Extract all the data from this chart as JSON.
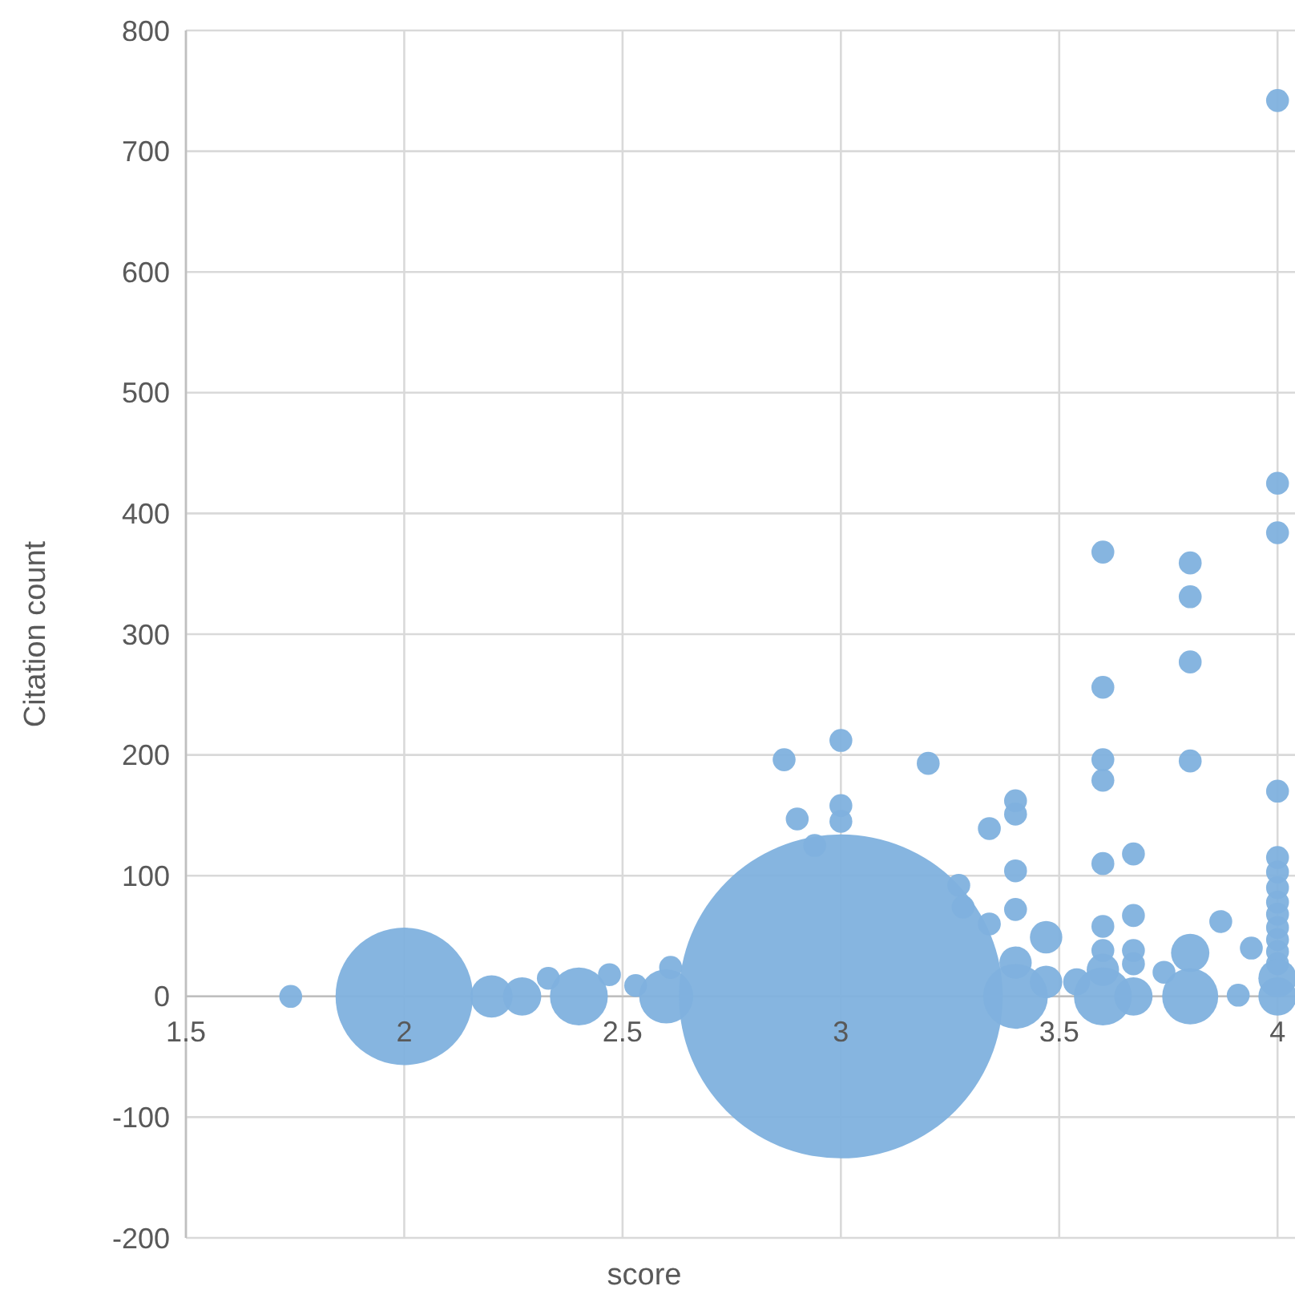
{
  "chart_data": {
    "type": "bubble",
    "xlabel": "score",
    "ylabel": "Citation count",
    "xlim": [
      1.5,
      4.04
    ],
    "xticks": [
      1.5,
      2,
      2.5,
      3,
      3.5,
      4
    ],
    "ylim": [
      -200,
      800
    ],
    "yticks": [
      -200,
      -100,
      0,
      100,
      200,
      300,
      400,
      500,
      600,
      700,
      800
    ],
    "grid": true,
    "series": [
      {
        "color": "#7fb1de",
        "x": [
          1.74,
          2,
          2.2,
          2.27,
          2.33,
          2.4,
          2.47,
          2.53,
          2.6,
          2.61,
          3,
          2.87,
          2.9,
          2.94,
          3,
          3,
          3,
          3.2,
          3.34,
          3.4,
          3.4,
          3.4,
          3.27,
          3.28,
          3.4,
          3.34,
          3.47,
          3.4,
          3.4,
          3.47,
          3.54,
          3.6,
          3.6,
          3.6,
          3.6,
          3.6,
          3.67,
          3.6,
          3.67,
          3.67,
          3.67,
          3.6,
          3.6,
          3.6,
          3.67,
          3.74,
          3.8,
          3.8,
          3.8,
          3.8,
          3.8,
          3.8,
          3.87,
          3.94,
          3.91,
          4,
          4,
          4,
          4,
          4,
          4,
          4,
          4,
          4,
          4,
          4,
          4,
          4,
          4,
          4
        ],
        "values": [
          0,
          0,
          0,
          0,
          15,
          0,
          18,
          9,
          0,
          24,
          0,
          196,
          147,
          125,
          212,
          158,
          145,
          193,
          139,
          162,
          151,
          104,
          92,
          74,
          72,
          60,
          49,
          28,
          0,
          12,
          12,
          368,
          256,
          196,
          179,
          110,
          118,
          58,
          67,
          38,
          27,
          38,
          22,
          0,
          0,
          20,
          359,
          331,
          277,
          195,
          36,
          0,
          62,
          40,
          1,
          742,
          425,
          384,
          170,
          115,
          103,
          90,
          78,
          68,
          57,
          47,
          37,
          27,
          15,
          0
        ],
        "sizes": [
          0.005,
          0.18,
          0.017,
          0.014,
          0.005,
          0.032,
          0.005,
          0.005,
          0.028,
          0.005,
          1,
          0.005,
          0.005,
          0.005,
          0.005,
          0.005,
          0.005,
          0.005,
          0.005,
          0.005,
          0.005,
          0.005,
          0.005,
          0.005,
          0.005,
          0.005,
          0.01,
          0.01,
          0.04,
          0.01,
          0.007,
          0.005,
          0.005,
          0.005,
          0.005,
          0.005,
          0.005,
          0.005,
          0.005,
          0.005,
          0.005,
          0.005,
          0.01,
          0.032,
          0.014,
          0.005,
          0.005,
          0.005,
          0.005,
          0.005,
          0.014,
          0.03,
          0.005,
          0.005,
          0.005,
          0.005,
          0.005,
          0.005,
          0.005,
          0.005,
          0.005,
          0.005,
          0.005,
          0.005,
          0.005,
          0.005,
          0.005,
          0.005,
          0.014,
          0.014
        ]
      }
    ]
  }
}
